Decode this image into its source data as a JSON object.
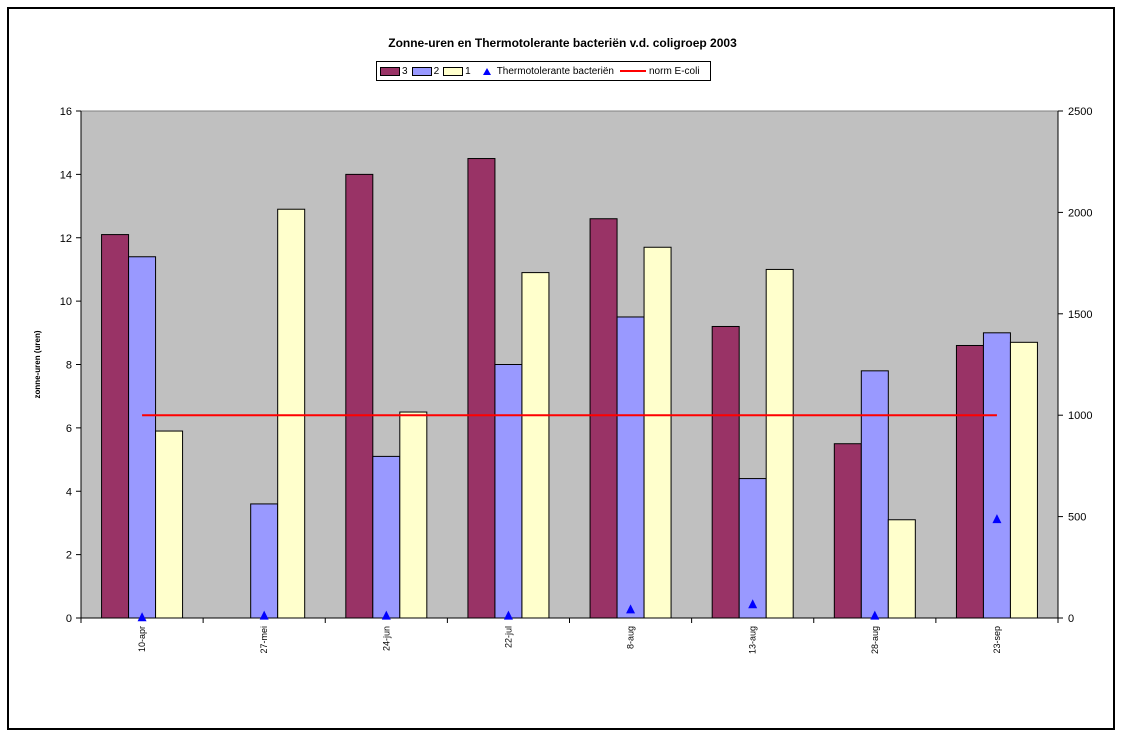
{
  "chart_data": {
    "type": "bar",
    "title": "Zonne-uren en Thermotolerante bacteriën v.d. coligroep 2003",
    "ylabel": "zonne-uren (uren)",
    "ylim": [
      0,
      16
    ],
    "y_ticks": [
      "0",
      "2",
      "4",
      "6",
      "8",
      "10",
      "12",
      "14",
      "16"
    ],
    "y2lim": [
      0,
      2500
    ],
    "y2_ticks": [
      "0",
      "500",
      "1000",
      "1500",
      "2000",
      "2500"
    ],
    "categories": [
      "10-apr",
      "27-mei",
      "24-jun",
      "22-jul",
      "8-aug",
      "13-aug",
      "28-aug",
      "23-sep"
    ],
    "series": [
      {
        "name": "3",
        "color": "#993366",
        "values": [
          12.1,
          0,
          14.0,
          14.5,
          12.6,
          9.2,
          5.5,
          8.6
        ]
      },
      {
        "name": "2",
        "color": "#9999ff",
        "values": [
          11.4,
          3.6,
          5.1,
          8.0,
          9.5,
          4.4,
          7.8,
          9.0
        ]
      },
      {
        "name": "1",
        "color": "#ffffcc",
        "values": [
          5.9,
          12.9,
          6.5,
          10.9,
          11.7,
          11.0,
          3.1,
          8.7
        ]
      }
    ],
    "markers": {
      "name": "Thermotolerante bacteriën",
      "color": "#0000ff",
      "axis": "right",
      "values": [
        6,
        14,
        14,
        14,
        45,
        70,
        14,
        490
      ]
    },
    "line": {
      "name": "norm E-coli",
      "color": "#ff0000",
      "axis": "right",
      "value": 1000
    },
    "plot_background": "#c0c0c0",
    "legend_position": "top-center",
    "grid": false
  }
}
